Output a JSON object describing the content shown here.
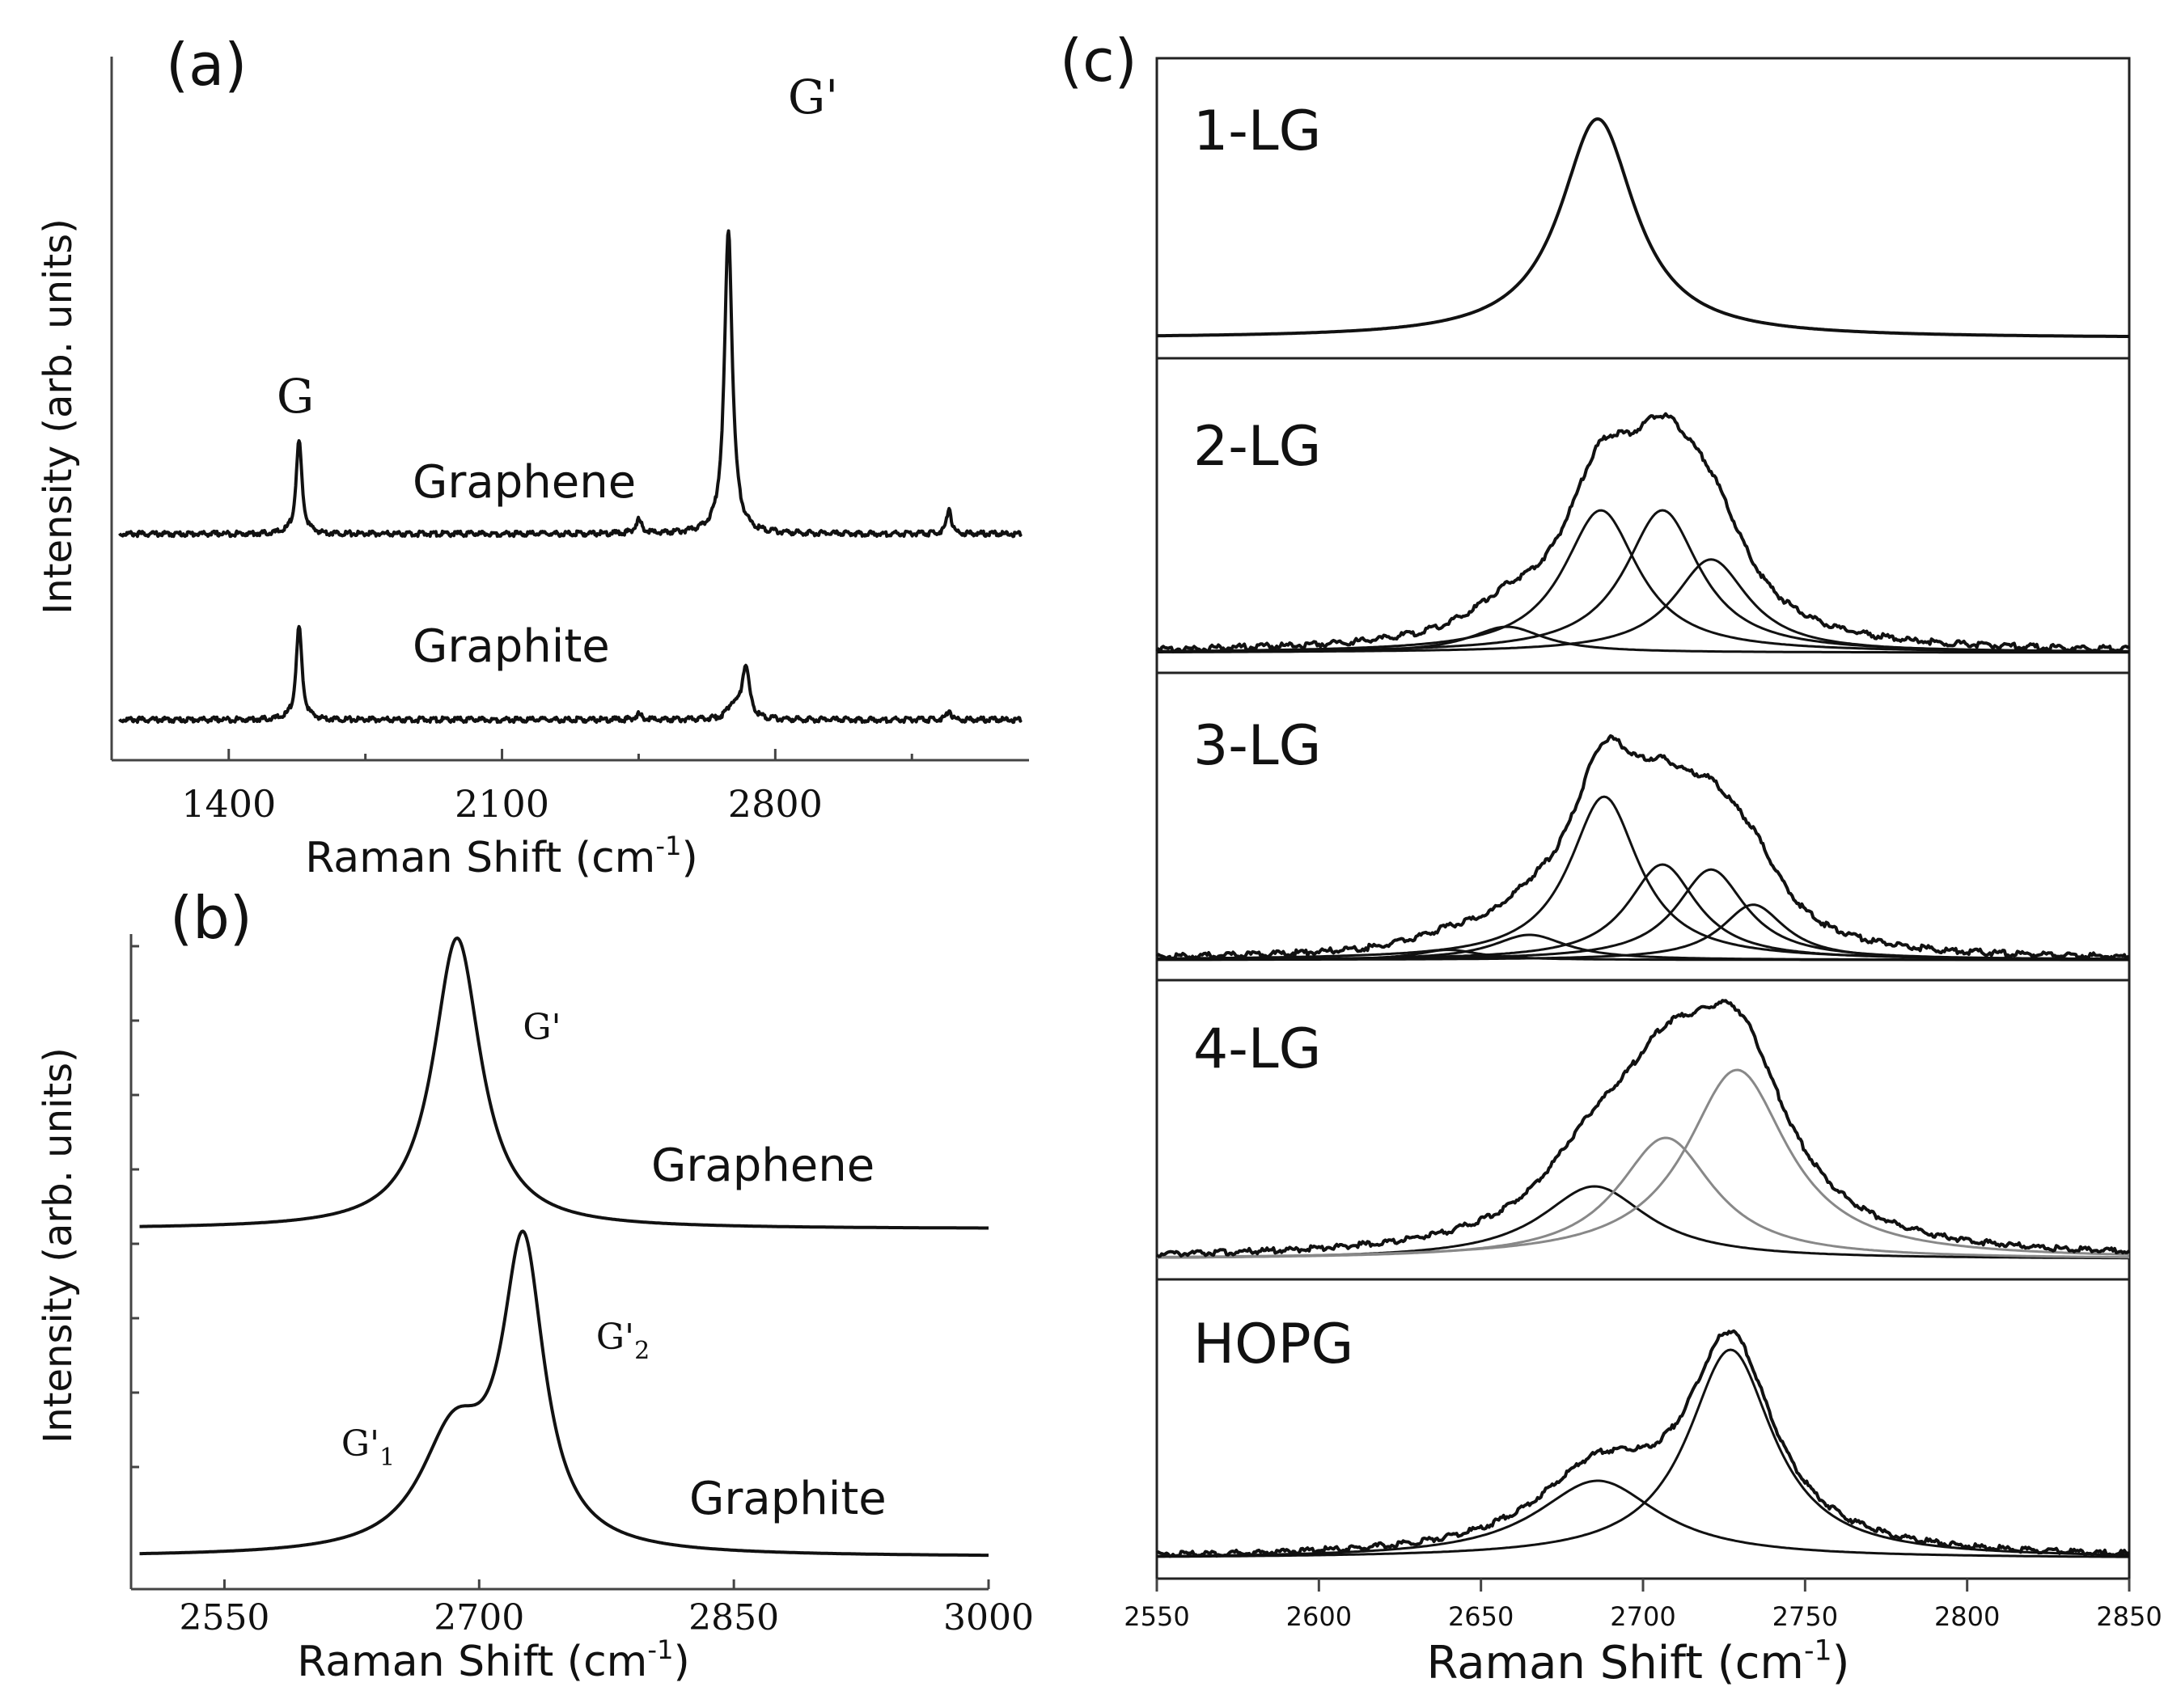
{
  "chart_data": [
    {
      "panel": "(a)",
      "type": "line",
      "ylabel": "Intensity (arb. units)",
      "xlabel": "Raman Shift (cm",
      "xlabel_sup": "-1",
      "xlabel_end": ")",
      "xlim": [
        1100,
        3450
      ],
      "xticks": [
        1400,
        2100,
        2800
      ],
      "peak_labels": [
        {
          "text": "G",
          "x": 1580
        },
        {
          "text": "G'",
          "x": 2700
        }
      ],
      "series": [
        {
          "name": "Graphene",
          "offset": 0.28,
          "peaks": [
            {
              "x": 1580,
              "h": 0.14,
              "w": 9
            },
            {
              "x": 2450,
              "h": 0.02,
              "w": 10
            },
            {
              "x": 2680,
              "h": 0.46,
              "w": 12
            },
            {
              "x": 3245,
              "h": 0.04,
              "w": 7
            }
          ]
        },
        {
          "name": "Graphite",
          "offset": 0.0,
          "peaks": [
            {
              "x": 1580,
              "h": 0.14,
              "w": 9
            },
            {
              "x": 2450,
              "h": 0.008,
              "w": 10
            },
            {
              "x": 2690,
              "h": 0.02,
              "w": 14
            },
            {
              "x": 2724,
              "h": 0.08,
              "w": 12
            },
            {
              "x": 3245,
              "h": 0.015,
              "w": 7
            }
          ]
        }
      ]
    },
    {
      "panel": "(b)",
      "type": "line",
      "ylabel": "Intensity (arb. units)",
      "xlabel": "Raman Shift (cm",
      "xlabel_sup": "-1",
      "xlabel_end": ")",
      "xlim": [
        2495,
        3000
      ],
      "xticks": [
        2550,
        2700,
        2850,
        3000
      ],
      "peak_labels": [
        {
          "text": "G'",
          "x": 2760
        },
        {
          "text": "G'",
          "sub": "2",
          "x": 2790
        },
        {
          "text": "G'",
          "sub": "1",
          "x": 2630
        }
      ],
      "series": [
        {
          "name": "Graphene",
          "offset": 0.53,
          "peaks": [
            {
              "x": 2687,
              "h": 0.47,
              "w": 17
            }
          ]
        },
        {
          "name": "Graphite",
          "offset": 0.0,
          "peaks": [
            {
              "x": 2685,
              "h": 0.18,
              "w": 24
            },
            {
              "x": 2726,
              "h": 0.48,
              "w": 15
            }
          ]
        }
      ]
    },
    {
      "panel": "(c)",
      "type": "line",
      "xlabel": "Raman Shift (cm",
      "xlabel_sup": "-1",
      "xlabel_end": ")",
      "xlim": [
        2550,
        2850
      ],
      "xticks": [
        2550,
        2600,
        2650,
        2700,
        2750,
        2800,
        2850
      ],
      "subplots": [
        {
          "label": "1-LG",
          "components": [
            {
              "x": 2686,
              "h": 0.9,
              "w": 14
            }
          ],
          "show_components": false
        },
        {
          "label": "2-LG",
          "components": [
            {
              "x": 2658,
              "h": 0.1,
              "w": 14
            },
            {
              "x": 2687,
              "h": 0.55,
              "w": 14
            },
            {
              "x": 2706,
              "h": 0.55,
              "w": 14
            },
            {
              "x": 2721,
              "h": 0.36,
              "w": 14
            }
          ],
          "show_components": true
        },
        {
          "label": "3-LG",
          "components": [
            {
              "x": 2640,
              "h": 0.04,
              "w": 12
            },
            {
              "x": 2665,
              "h": 0.1,
              "w": 14
            },
            {
              "x": 2688,
              "h": 0.65,
              "w": 13
            },
            {
              "x": 2706,
              "h": 0.38,
              "w": 13
            },
            {
              "x": 2721,
              "h": 0.36,
              "w": 13
            },
            {
              "x": 2734,
              "h": 0.22,
              "w": 12
            }
          ],
          "show_components": true
        },
        {
          "label": "4-LG",
          "components": [
            {
              "x": 2685,
              "h": 0.3,
              "w": 20
            },
            {
              "x": 2707,
              "h": 0.5,
              "w": 18
            },
            {
              "x": 2729,
              "h": 0.78,
              "w": 19
            }
          ],
          "show_components": true
        },
        {
          "label": "HOPG",
          "components": [
            {
              "x": 2686,
              "h": 0.32,
              "w": 23
            },
            {
              "x": 2727,
              "h": 0.86,
              "w": 16
            }
          ],
          "show_components": true
        }
      ]
    }
  ]
}
